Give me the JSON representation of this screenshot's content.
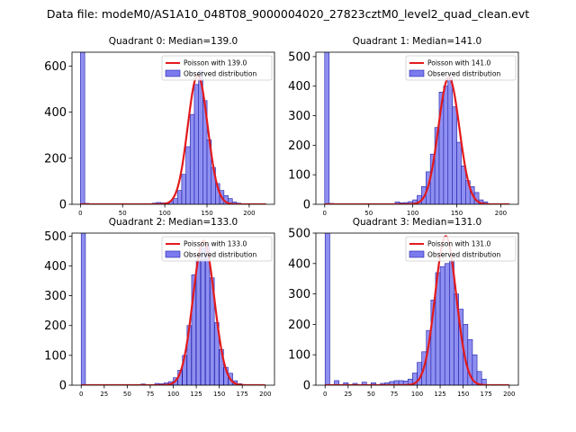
{
  "figure_title": "Data file: modeM0/AS1A10_048T08_9000004020_27823cztM0_level2_quad_clean.evt",
  "colors": {
    "bar_fill": "#7b7bef",
    "bar_edge": "#1f1fa8",
    "fit_line": "#e31a1c",
    "axis": "#000000"
  },
  "chart_data": [
    {
      "type": "bar",
      "title": "Quadrant 0: Median=139.0",
      "legend": {
        "position": "top-right",
        "fit_label": "Poisson with 139.0",
        "hist_label": "Observed distribution"
      },
      "xlim": [
        -10,
        230
      ],
      "ylim": [
        0,
        660
      ],
      "xticks": [
        0,
        50,
        100,
        150,
        200
      ],
      "yticks": [
        0,
        200,
        400,
        600
      ],
      "bin_width": 5.1,
      "bins": [
        [
          0,
          660
        ],
        [
          5,
          4
        ],
        [
          85,
          5
        ],
        [
          90,
          8
        ],
        [
          95,
          6
        ],
        [
          100,
          7
        ],
        [
          105,
          12
        ],
        [
          110,
          25
        ],
        [
          115,
          60
        ],
        [
          120,
          130
        ],
        [
          125,
          250
        ],
        [
          130,
          390
        ],
        [
          135,
          520
        ],
        [
          140,
          580
        ],
        [
          145,
          450
        ],
        [
          150,
          280
        ],
        [
          155,
          160
        ],
        [
          160,
          90
        ],
        [
          165,
          60
        ],
        [
          170,
          38
        ],
        [
          175,
          25
        ],
        [
          180,
          10
        ],
        [
          185,
          5
        ]
      ],
      "fit_lambda": 139.0,
      "fit_peak": 560,
      "fit_range": [
        0,
        220
      ]
    },
    {
      "type": "bar",
      "title": "Quadrant 1: Median=141.0",
      "legend": {
        "position": "top-right",
        "fit_label": "Poisson with 141.0",
        "hist_label": "Observed distribution"
      },
      "xlim": [
        -10,
        220
      ],
      "ylim": [
        0,
        515
      ],
      "xticks": [
        0,
        50,
        100,
        150,
        200
      ],
      "yticks": [
        0,
        100,
        200,
        300,
        400,
        500
      ],
      "bin_width": 5.1,
      "bins": [
        [
          0,
          515
        ],
        [
          5,
          3
        ],
        [
          80,
          8
        ],
        [
          85,
          5
        ],
        [
          90,
          6
        ],
        [
          95,
          9
        ],
        [
          100,
          15
        ],
        [
          105,
          30
        ],
        [
          110,
          60
        ],
        [
          115,
          110
        ],
        [
          120,
          170
        ],
        [
          125,
          260
        ],
        [
          130,
          380
        ],
        [
          135,
          400
        ],
        [
          140,
          430
        ],
        [
          145,
          330
        ],
        [
          150,
          210
        ],
        [
          155,
          130
        ],
        [
          160,
          80
        ],
        [
          165,
          60
        ],
        [
          170,
          40
        ],
        [
          175,
          15
        ],
        [
          180,
          8
        ]
      ],
      "fit_lambda": 141.0,
      "fit_peak": 430,
      "fit_range": [
        0,
        210
      ]
    },
    {
      "type": "bar",
      "title": "Quadrant 2: Median=133.0",
      "legend": {
        "position": "top-right",
        "fit_label": "Poisson with 133.0",
        "hist_label": "Observed distribution"
      },
      "xlim": [
        -10,
        210
      ],
      "ylim": [
        0,
        510
      ],
      "xticks": [
        0,
        25,
        50,
        75,
        100,
        125,
        150,
        175,
        200
      ],
      "yticks": [
        0,
        100,
        200,
        300,
        400,
        500
      ],
      "bin_width": 4.6,
      "bins": [
        [
          0,
          510
        ],
        [
          65,
          4
        ],
        [
          80,
          6
        ],
        [
          85,
          5
        ],
        [
          90,
          8
        ],
        [
          95,
          12
        ],
        [
          100,
          25
        ],
        [
          105,
          50
        ],
        [
          110,
          100
        ],
        [
          115,
          200
        ],
        [
          120,
          370
        ],
        [
          125,
          420
        ],
        [
          130,
          460
        ],
        [
          135,
          470
        ],
        [
          140,
          360
        ],
        [
          145,
          210
        ],
        [
          150,
          120
        ],
        [
          155,
          60
        ],
        [
          160,
          40
        ],
        [
          165,
          15
        ],
        [
          170,
          5
        ]
      ],
      "fit_lambda": 133.0,
      "fit_peak": 485,
      "fit_range": [
        0,
        200
      ]
    },
    {
      "type": "bar",
      "title": "Quadrant 3: Median=131.0",
      "legend": {
        "position": "top-right",
        "fit_label": "Poisson with 131.0",
        "hist_label": "Observed distribution"
      },
      "xlim": [
        -10,
        210
      ],
      "ylim": [
        0,
        500
      ],
      "xticks": [
        0,
        25,
        50,
        75,
        100,
        125,
        150,
        175,
        200
      ],
      "yticks": [
        0,
        100,
        200,
        300,
        400,
        500
      ],
      "bin_width": 5.1,
      "bins": [
        [
          0,
          500
        ],
        [
          10,
          15
        ],
        [
          20,
          8
        ],
        [
          30,
          6
        ],
        [
          40,
          10
        ],
        [
          50,
          8
        ],
        [
          60,
          6
        ],
        [
          65,
          8
        ],
        [
          70,
          12
        ],
        [
          75,
          15
        ],
        [
          80,
          15
        ],
        [
          85,
          14
        ],
        [
          90,
          20
        ],
        [
          95,
          40
        ],
        [
          100,
          75
        ],
        [
          105,
          110
        ],
        [
          110,
          180
        ],
        [
          115,
          280
        ],
        [
          120,
          370
        ],
        [
          125,
          390
        ],
        [
          130,
          400
        ],
        [
          135,
          410
        ],
        [
          140,
          300
        ],
        [
          145,
          250
        ],
        [
          150,
          200
        ],
        [
          155,
          150
        ],
        [
          160,
          100
        ],
        [
          165,
          45
        ],
        [
          170,
          20
        ]
      ],
      "fit_lambda": 131.0,
      "fit_peak": 490,
      "fit_range": [
        0,
        200
      ]
    }
  ]
}
